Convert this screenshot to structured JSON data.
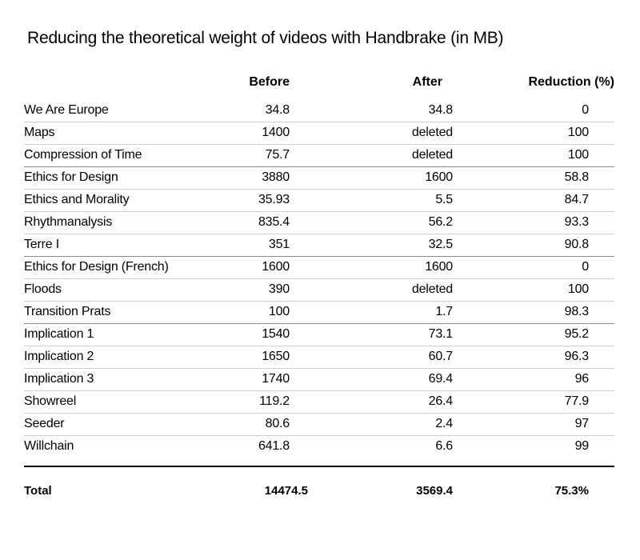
{
  "chart_data": {
    "type": "table",
    "title": "Reducing the theoretical weight of videos with Handbrake (in MB)",
    "columns": [
      "",
      "Before",
      "After",
      "Reduction (%)"
    ],
    "rows": [
      {
        "name": "We Are Europe",
        "before": "34.8",
        "after": "34.8",
        "reduction": "0"
      },
      {
        "name": "Maps",
        "before": "1400",
        "after": "deleted",
        "reduction": "100"
      },
      {
        "name": "Compression of Time",
        "before": "75.7",
        "after": "deleted",
        "reduction": "100"
      },
      {
        "name": "Ethics for Design",
        "before": "3880",
        "after": "1600",
        "reduction": "58.8"
      },
      {
        "name": "Ethics and Morality",
        "before": "35.93",
        "after": "5.5",
        "reduction": "84.7"
      },
      {
        "name": "Rhythmanalysis",
        "before": "835.4",
        "after": "56.2",
        "reduction": "93.3"
      },
      {
        "name": "Terre I",
        "before": "351",
        "after": "32.5",
        "reduction": "90.8"
      },
      {
        "name": "Ethics for Design (French)",
        "before": "1600",
        "after": "1600",
        "reduction": "0"
      },
      {
        "name": "Floods",
        "before": "390",
        "after": "deleted",
        "reduction": "100"
      },
      {
        "name": "Transition Prats",
        "before": "100",
        "after": "1.7",
        "reduction": "98.3"
      },
      {
        "name": "Implication 1",
        "before": "1540",
        "after": "73.1",
        "reduction": "95.2"
      },
      {
        "name": "Implication 2",
        "before": "1650",
        "after": "60.7",
        "reduction": "96.3"
      },
      {
        "name": "Implication 3",
        "before": "1740",
        "after": "69.4",
        "reduction": "96"
      },
      {
        "name": "Showreel",
        "before": "119.2",
        "after": "26.4",
        "reduction": "77.9"
      },
      {
        "name": "Seeder",
        "before": "80.6",
        "after": "2.4",
        "reduction": "97"
      },
      {
        "name": "Willchain",
        "before": "641.8",
        "after": "6.6",
        "reduction": "99"
      }
    ],
    "total": {
      "label": "Total",
      "before": "14474.5",
      "after": "3569.4",
      "reduction": "75.3%"
    }
  }
}
